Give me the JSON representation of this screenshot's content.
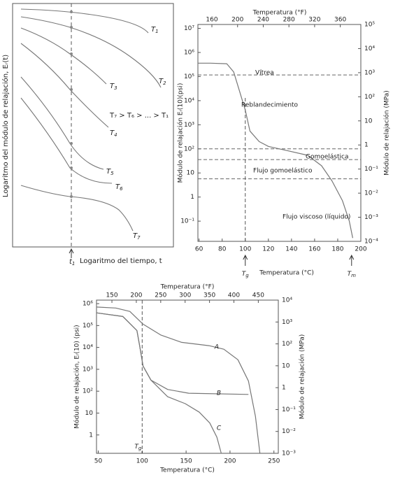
{
  "schematic": {
    "y_label": "Logaritmo del módulo de relajación, Eᵣ(t)",
    "x_label": "Logaritmo del tiempo, t",
    "t_marker": {
      "base": "t",
      "sub": "1"
    },
    "curve_labels": [
      {
        "base": "T",
        "sub": "1"
      },
      {
        "base": "T",
        "sub": "2"
      },
      {
        "base": "T",
        "sub": "3"
      },
      {
        "base": "T",
        "sub": "4"
      },
      {
        "base": "T",
        "sub": "5"
      },
      {
        "base": "T",
        "sub": "6"
      },
      {
        "base": "T",
        "sub": "7"
      }
    ],
    "order_label": "T₇ > T₆ > ... > T₁"
  },
  "chart_data": [
    {
      "type": "line",
      "log_y": true,
      "x_label": "Temperatura (°C)",
      "x2_label": "Temperatura (°F)",
      "y_label": "Módulo de relajación Eᵣ(10)(psi)",
      "y2_label": "Módulo de relajación (MPa)",
      "xlim": [
        59,
        200
      ],
      "xticks": [
        60,
        80,
        100,
        120,
        140,
        160,
        180,
        200
      ],
      "x2lim": [
        138.2,
        392
      ],
      "x2ticks": [
        160,
        200,
        240,
        280,
        320,
        360
      ],
      "ylim": [
        0.0145,
        14500000
      ],
      "yticks": [
        {
          "value": 0.1,
          "label": "10⁻¹"
        },
        1,
        10,
        {
          "value": 100,
          "label": "10²"
        },
        {
          "value": 1000,
          "label": "10³"
        },
        {
          "value": 10000,
          "label": "10⁴"
        },
        {
          "value": 100000,
          "label": "10⁵"
        },
        {
          "value": 1000000,
          "label": "10⁶"
        },
        {
          "value": 10000000,
          "label": "10⁷"
        }
      ],
      "y2lim": [
        0.0001,
        100000
      ],
      "y2ticks": [
        {
          "value": 0.0001,
          "label": "10⁻⁴"
        },
        {
          "value": 0.001,
          "label": "10⁻³"
        },
        {
          "value": 0.01,
          "label": "10⁻²"
        },
        {
          "value": 0.1,
          "label": "10⁻¹"
        },
        1,
        10,
        {
          "value": 100,
          "label": "10²"
        },
        {
          "value": 1000,
          "label": "10³"
        },
        {
          "value": 10000,
          "label": "10⁴"
        },
        {
          "value": 100000,
          "label": "10⁵"
        }
      ],
      "series": [
        {
          "color": "#777777",
          "x": [
            59,
            70,
            84,
            90,
            95,
            100,
            104,
            112,
            120,
            136,
            154,
            166,
            175,
            184,
            190,
            193
          ],
          "values": [
            360000,
            360000,
            340000,
            155000,
            25000,
            4000,
            550,
            200,
            126,
            85,
            54,
            20,
            4.7,
            0.72,
            0.1,
            0.02
          ]
        }
      ],
      "hlines": [
        117000,
        100,
        36,
        5.7
      ],
      "vlines": [
        100
      ],
      "annotations": [
        "Vítrea",
        "Reblandecimiento",
        "Gomoelástica",
        "Flujo gomoelástico",
        "Flujo viscoso (líquido)"
      ],
      "markers": [
        {
          "value": 100,
          "base": "T",
          "sub": "g"
        },
        {
          "value": 192,
          "base": "T",
          "sub": "m"
        }
      ]
    },
    {
      "type": "line",
      "log_y": true,
      "x_label": "Temperatura (°C)",
      "x2_label": "Temperatura (°F)",
      "y_label": "Módulo de relajación, Eᵣ(10) (psi)",
      "y2_label": "Módulo de relajación (MPa)",
      "xlim": [
        48,
        255
      ],
      "xticks": [
        50,
        100,
        150,
        200,
        250
      ],
      "x2lim": [
        118.4,
        491
      ],
      "x2ticks": [
        150,
        200,
        250,
        300,
        350,
        400,
        450
      ],
      "ylim": [
        0.145,
        1450000
      ],
      "yticks": [
        1,
        10,
        {
          "value": 100,
          "label": "10²"
        },
        {
          "value": 1000,
          "label": "10³"
        },
        {
          "value": 10000,
          "label": "10⁴"
        },
        {
          "value": 100000,
          "label": "10⁵"
        },
        {
          "value": 1000000,
          "label": "10⁶"
        }
      ],
      "y2lim": [
        0.001,
        10000
      ],
      "y2ticks": [
        {
          "value": 0.001,
          "label": "10⁻³"
        },
        {
          "value": 0.01,
          "label": "10⁻²"
        },
        {
          "value": 0.1,
          "label": "10⁻¹"
        },
        1,
        10,
        {
          "value": 100,
          "label": "10²"
        },
        {
          "value": 1000,
          "label": "10³"
        },
        {
          "value": 10000,
          "label": "10⁴"
        }
      ],
      "series": [
        {
          "name": "A",
          "color": "#777777",
          "x": [
            48,
            70,
            86,
            101,
            121,
            145,
            176,
            193,
            209,
            221,
            229,
            234
          ],
          "values": [
            700000,
            630000,
            440000,
            115000,
            37000,
            17000,
            12000,
            8300,
            2750,
            290,
            7,
            0.15
          ]
        },
        {
          "name": "B",
          "color": "#777777",
          "x": [
            48,
            78,
            94,
            97,
            101,
            110,
            129,
            153,
            221
          ],
          "values": [
            380000,
            260000,
            59000,
            13000,
            1400,
            320,
            120,
            81,
            71
          ]
        },
        {
          "name": "C",
          "color": "#777777",
          "x": [
            48,
            78,
            94,
            97,
            101,
            110,
            129,
            149,
            165,
            177,
            185,
            190
          ],
          "values": [
            380000,
            260000,
            59000,
            13000,
            1400,
            320,
            56,
            27,
            11,
            3.5,
            0.8,
            0.145
          ]
        }
      ],
      "vlines": [
        100
      ],
      "markers": [
        {
          "value": 100,
          "base": "T",
          "sub": "g"
        }
      ]
    }
  ]
}
